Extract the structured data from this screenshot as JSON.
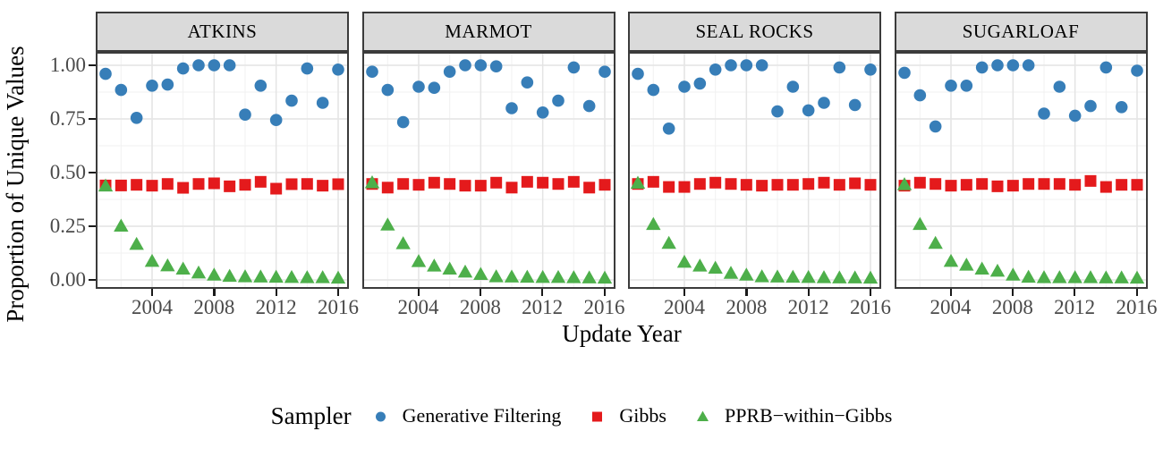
{
  "chart_data": {
    "type": "scatter",
    "faceted": true,
    "xlabel": "Update Year",
    "ylabel": "Proportion of Unique Values",
    "facets": [
      "ATKINS",
      "MARMOT",
      "SEAL ROCKS",
      "SUGARLOAF"
    ],
    "x": [
      2001,
      2002,
      2003,
      2004,
      2005,
      2006,
      2007,
      2008,
      2009,
      2010,
      2011,
      2012,
      2013,
      2014,
      2015,
      2016
    ],
    "axes": {
      "x_major_ticks": [
        2004,
        2008,
        2012,
        2016
      ],
      "x_minor_ticks": [
        2002,
        2006,
        2010,
        2014
      ],
      "x_tick_labels": [
        "2004",
        "2008",
        "2012",
        "2016"
      ],
      "y_major_ticks": [
        1.0,
        0.75,
        0.5,
        0.25,
        0.0
      ],
      "y_tick_labels": [
        "1.00",
        "0.75",
        "0.50",
        "0.25",
        "0.00"
      ],
      "y_minor_ticks": [
        0.875,
        0.625,
        0.375,
        0.125
      ],
      "xlim": [
        2000.4,
        2016.7
      ],
      "ylim": [
        -0.042,
        1.062
      ],
      "grid": "major+minor"
    },
    "legend": {
      "title": "Sampler",
      "position": "bottom"
    },
    "series": [
      {
        "name": "Generative Filtering",
        "marker": "circle",
        "color": "#377EB8",
        "values_by_facet": [
          [
            0.96,
            0.885,
            0.755,
            0.905,
            0.91,
            0.985,
            1.0,
            1.0,
            1.0,
            0.77,
            0.905,
            0.745,
            0.835,
            0.985,
            0.825,
            0.98
          ],
          [
            0.97,
            0.885,
            0.735,
            0.9,
            0.895,
            0.97,
            1.0,
            1.0,
            0.995,
            0.8,
            0.92,
            0.78,
            0.835,
            0.99,
            0.81,
            0.97
          ],
          [
            0.96,
            0.885,
            0.705,
            0.9,
            0.915,
            0.98,
            1.0,
            1.0,
            1.0,
            0.785,
            0.9,
            0.79,
            0.825,
            0.99,
            0.815,
            0.98
          ],
          [
            0.965,
            0.86,
            0.715,
            0.905,
            0.905,
            0.99,
            1.0,
            1.0,
            1.0,
            0.775,
            0.9,
            0.765,
            0.81,
            0.99,
            0.805,
            0.975
          ]
        ]
      },
      {
        "name": "Gibbs",
        "marker": "square",
        "color": "#E41A1C",
        "values_by_facet": [
          [
            0.44,
            0.44,
            0.443,
            0.439,
            0.447,
            0.429,
            0.447,
            0.45,
            0.436,
            0.443,
            0.457,
            0.425,
            0.446,
            0.447,
            0.439,
            0.446
          ],
          [
            0.447,
            0.43,
            0.447,
            0.443,
            0.453,
            0.447,
            0.439,
            0.439,
            0.453,
            0.43,
            0.457,
            0.453,
            0.447,
            0.457,
            0.43,
            0.443
          ],
          [
            0.447,
            0.457,
            0.433,
            0.433,
            0.447,
            0.453,
            0.447,
            0.443,
            0.439,
            0.443,
            0.443,
            0.447,
            0.453,
            0.443,
            0.45,
            0.443
          ],
          [
            0.439,
            0.453,
            0.447,
            0.439,
            0.443,
            0.447,
            0.436,
            0.439,
            0.447,
            0.447,
            0.447,
            0.443,
            0.461,
            0.433,
            0.443,
            0.443
          ]
        ]
      },
      {
        "name": "PPRB−within−Gibbs",
        "marker": "triangle",
        "color": "#4DAF4A",
        "values_by_facet": [
          [
            0.437,
            0.25,
            0.165,
            0.086,
            0.065,
            0.05,
            0.032,
            0.022,
            0.016,
            0.014,
            0.013,
            0.012,
            0.011,
            0.01,
            0.01,
            0.008
          ],
          [
            0.452,
            0.255,
            0.168,
            0.085,
            0.064,
            0.05,
            0.036,
            0.025,
            0.014,
            0.013,
            0.012,
            0.011,
            0.011,
            0.01,
            0.009,
            0.008
          ],
          [
            0.45,
            0.258,
            0.17,
            0.082,
            0.064,
            0.054,
            0.03,
            0.022,
            0.014,
            0.013,
            0.012,
            0.011,
            0.01,
            0.009,
            0.009,
            0.008
          ],
          [
            0.443,
            0.258,
            0.17,
            0.086,
            0.068,
            0.05,
            0.04,
            0.022,
            0.012,
            0.01,
            0.01,
            0.01,
            0.01,
            0.009,
            0.009,
            0.008
          ]
        ]
      }
    ],
    "style": {
      "strip_bg": "#DADADA",
      "panel_border": "#3B3B3B",
      "grid_major": "#E4E4E4",
      "grid_minor": "#F1F1F1",
      "tick_color": "#1A1A1A",
      "axis_text_color": "#4A4A4A",
      "text_color": "#000000"
    }
  }
}
